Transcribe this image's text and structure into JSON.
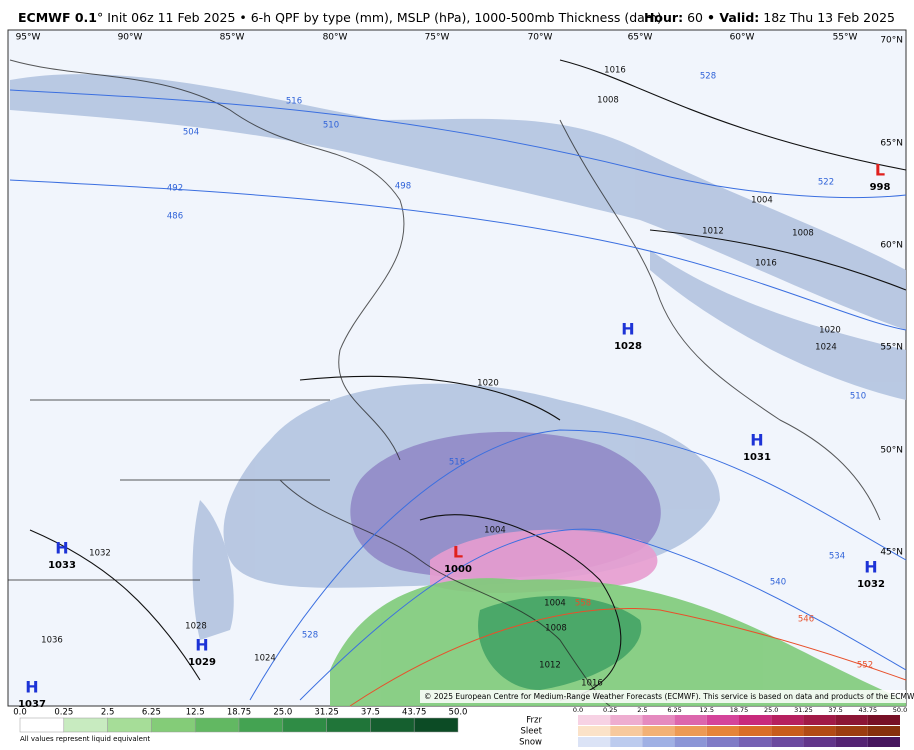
{
  "header": {
    "title_bold": "ECMWF 0.1",
    "title_rest": "° Init 06z 11 Feb 2025 • 6-h QPF by type (mm), MSLP (hPa), 1000-500mb Thickness (dam)",
    "hour_label": "Hour:",
    "hour": "60",
    "valid_label": "• Valid:",
    "valid": "18z Thu 13 Feb 2025"
  },
  "map": {
    "longitudes": [
      "95°W",
      "90°W",
      "85°W",
      "80°W",
      "75°W",
      "70°W",
      "65°W",
      "60°W",
      "55°W"
    ],
    "latitudes": [
      "70°N",
      "65°N",
      "60°N",
      "55°N",
      "50°N",
      "45°N"
    ],
    "systems": [
      {
        "type": "H",
        "pressure": "1028"
      },
      {
        "type": "H",
        "pressure": "1031"
      },
      {
        "type": "H",
        "pressure": "1033"
      },
      {
        "type": "H",
        "pressure": "1032"
      },
      {
        "type": "H",
        "pressure": "1029"
      },
      {
        "type": "H",
        "pressure": "1037"
      },
      {
        "type": "L",
        "pressure": "998"
      },
      {
        "type": "L",
        "pressure": "1000"
      }
    ],
    "isobar_labels": [
      "1016",
      "1008",
      "1004",
      "1008",
      "1012",
      "1016",
      "1020",
      "1024",
      "1020",
      "1032",
      "1028",
      "1024",
      "1036",
      "1004",
      "1008",
      "1012",
      "1016",
      "1004"
    ],
    "thickness_labels": [
      "528",
      "516",
      "510",
      "504",
      "498",
      "492",
      "486",
      "522",
      "510",
      "534",
      "540",
      "516",
      "528",
      "546",
      "552",
      "558"
    ],
    "copyright": "© 2025 European Centre for Medium-Range Weather Forecasts (ECMWF). This service is based on data and products of the ECMWF."
  },
  "legend": {
    "rain_scale": [
      "0.0",
      "0.25",
      "2.5",
      "6.25",
      "12.5",
      "18.75",
      "25.0",
      "31.25",
      "37.5",
      "43.75",
      "50.0"
    ],
    "note": "All values represent liquid equivalent",
    "types": [
      "Frzr",
      "Sleet",
      "Snow"
    ],
    "mixed_scale": [
      "0.0",
      "0.25",
      "2.5",
      "6.25",
      "12.5",
      "18.75",
      "25.0",
      "31.25",
      "37.5",
      "43.75",
      "50.0"
    ]
  }
}
